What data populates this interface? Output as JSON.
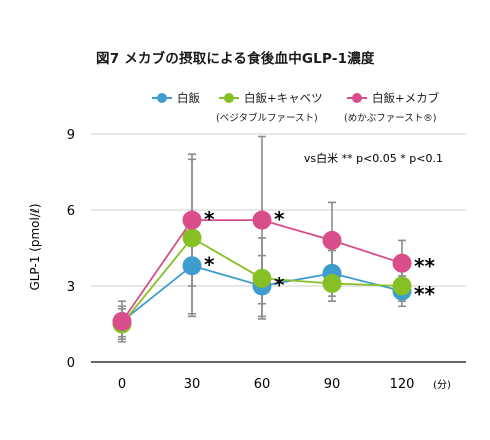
{
  "title": "図7 メカブの摂取による食後血中GLP-1濃度",
  "legend": [
    {
      "label": "白飯",
      "sub": ""
    },
    {
      "label": "白飯+キャベツ",
      "sub": "(ベジタブルファースト)"
    },
    {
      "label": "白飯+メカブ",
      "sub": "(めかぶファースト®)"
    }
  ],
  "significance_note": "vs白米 ** p<0.05 * p<0.1",
  "chart_data": {
    "type": "line",
    "title": "図7 メカブの摂取による食後血中GLP-1濃度",
    "ylabel": "GLP-1 (pmol/ℓ)",
    "xlabel": "",
    "x_unit": "(分)",
    "x": [
      0,
      30,
      60,
      90,
      120
    ],
    "ylim": [
      0,
      9
    ],
    "yticks": [
      0,
      3,
      6,
      9
    ],
    "grid": true,
    "legend_position": "top-right",
    "series": [
      {
        "name": "白飯",
        "color": "#3e9ccf",
        "values": [
          1.6,
          3.8,
          3.0,
          3.5,
          2.8
        ],
        "err": [
          0.6,
          1.9,
          1.2,
          0.9,
          0.6
        ]
      },
      {
        "name": "白飯+キャベツ",
        "color": "#86c025",
        "values": [
          1.5,
          4.9,
          3.3,
          3.1,
          3.0
        ],
        "err": [
          0.6,
          3.1,
          1.6,
          0.7,
          0.6
        ]
      },
      {
        "name": "白飯+メカブ",
        "color": "#d84d8a",
        "values": [
          1.6,
          5.6,
          5.6,
          4.8,
          3.9
        ],
        "err": [
          0.8,
          2.6,
          3.3,
          1.5,
          0.9
        ]
      }
    ],
    "annotations": [
      {
        "x": 30,
        "y": 3.8,
        "text": "*"
      },
      {
        "x": 30,
        "y": 5.6,
        "text": "*"
      },
      {
        "x": 60,
        "y": 5.6,
        "text": "*"
      },
      {
        "x": 60,
        "y": 3.0,
        "text": "*"
      },
      {
        "x": 120,
        "y": 3.9,
        "text": "**"
      },
      {
        "x": 120,
        "y": 2.8,
        "text": "**"
      }
    ]
  }
}
